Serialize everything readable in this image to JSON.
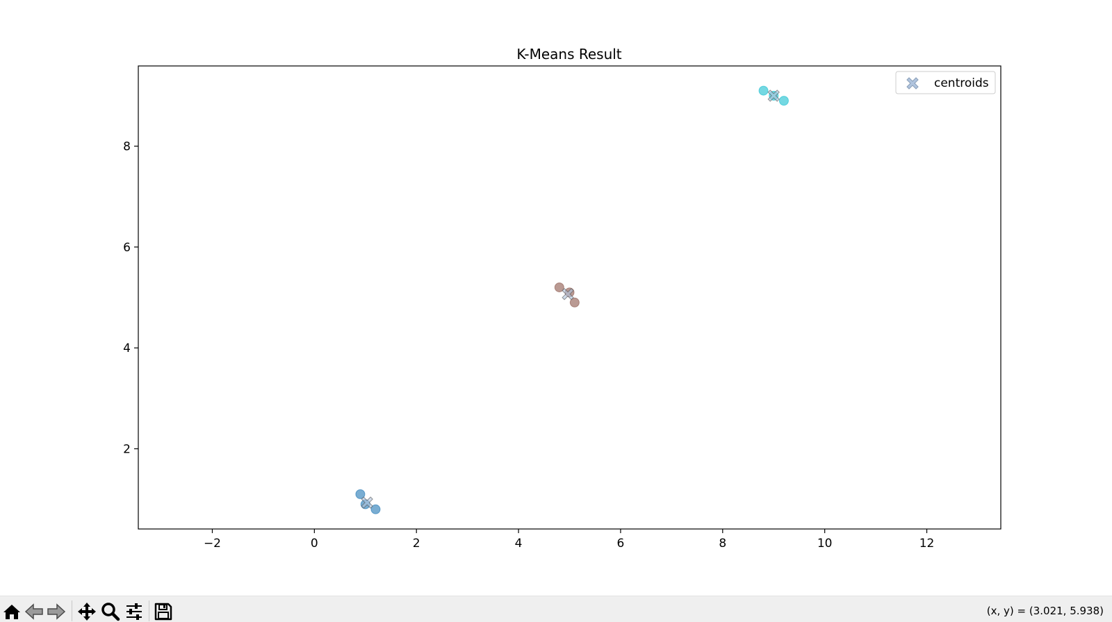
{
  "window": {
    "coord_readout": "(x, y) = (3.021, 5.938)"
  },
  "toolbar": {
    "buttons": [
      {
        "name": "home-button",
        "icon": "home-icon"
      },
      {
        "name": "back-button",
        "icon": "arrow-left-icon"
      },
      {
        "name": "forward-button",
        "icon": "arrow-right-icon"
      },
      {
        "name": "pan-button",
        "icon": "move-icon"
      },
      {
        "name": "zoom-button",
        "icon": "magnifier-icon"
      },
      {
        "name": "configure-subplots-button",
        "icon": "sliders-icon"
      },
      {
        "name": "save-button",
        "icon": "floppy-disk-icon"
      }
    ]
  },
  "chart_data": {
    "type": "scatter",
    "title": "K-Means Result",
    "xlabel": "",
    "ylabel": "",
    "xlim": [
      -3.45,
      13.45
    ],
    "ylim": [
      0.41,
      9.59
    ],
    "xticks": [
      -2,
      0,
      2,
      4,
      6,
      8,
      10,
      12
    ],
    "xtick_labels": [
      "−2",
      "0",
      "2",
      "4",
      "6",
      "8",
      "10",
      "12"
    ],
    "yticks": [
      2,
      4,
      6,
      8
    ],
    "ytick_labels": [
      "2",
      "4",
      "6",
      "8"
    ],
    "grid": false,
    "legend": {
      "position": "top-right",
      "entries": [
        "centroids"
      ]
    },
    "clusters": [
      {
        "color": "#1f77b4",
        "points": [
          [
            0.9,
            1.1
          ],
          [
            1.0,
            0.9
          ],
          [
            1.2,
            0.8
          ]
        ]
      },
      {
        "color": "#8c564b",
        "points": [
          [
            4.8,
            5.2
          ],
          [
            5.0,
            5.1
          ],
          [
            5.1,
            4.9
          ]
        ]
      },
      {
        "color": "#17becf",
        "points": [
          [
            8.8,
            9.1
          ],
          [
            9.0,
            9.0
          ],
          [
            9.2,
            8.9
          ]
        ]
      }
    ],
    "centroids": {
      "name": "centroids",
      "color": "#b0c4de",
      "points": [
        [
          1.033,
          0.933
        ],
        [
          4.967,
          5.067
        ],
        [
          9.0,
          9.0
        ]
      ]
    }
  }
}
